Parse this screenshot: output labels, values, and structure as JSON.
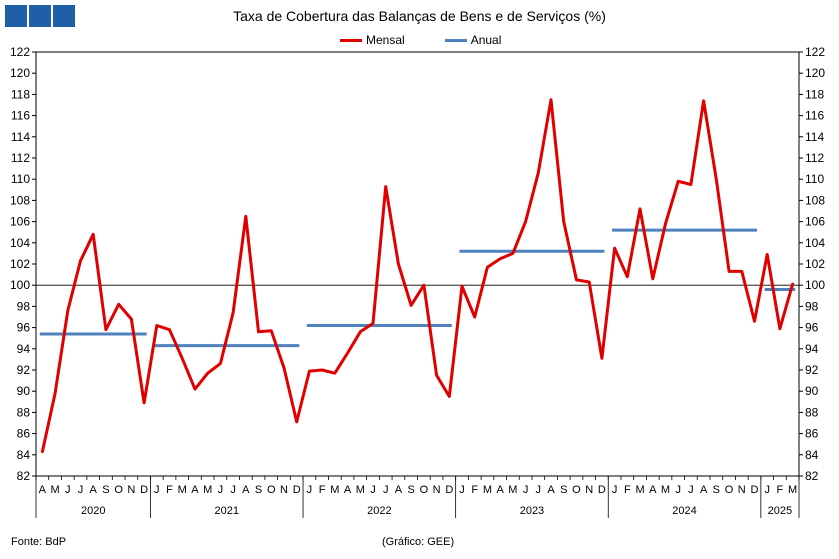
{
  "title": "Taxa de Cobertura das Balanças de Bens e de Serviços (%)",
  "legend": {
    "monthly": "Mensal",
    "annual": "Anual"
  },
  "colors": {
    "monthly": "#e00000",
    "annual": "#4f81bd",
    "logo": "#1f5fa8"
  },
  "footer": {
    "source": "Fonte: BdP",
    "credit": "(Gráfico: GEE)"
  },
  "chart_data": {
    "type": "line",
    "ylim": [
      82,
      122
    ],
    "yticks": [
      82,
      84,
      86,
      88,
      90,
      92,
      94,
      96,
      98,
      100,
      102,
      104,
      106,
      108,
      110,
      112,
      114,
      116,
      118,
      120,
      122
    ],
    "reference_line": 100,
    "month_labels": [
      "A",
      "M",
      "J",
      "J",
      "A",
      "S",
      "O",
      "N",
      "D",
      "J",
      "F",
      "M",
      "A",
      "M",
      "J",
      "J",
      "A",
      "S",
      "O",
      "N",
      "D",
      "J",
      "F",
      "M",
      "A",
      "M",
      "J",
      "J",
      "A",
      "S",
      "O",
      "N",
      "D",
      "J",
      "F",
      "M",
      "A",
      "M",
      "J",
      "J",
      "A",
      "S",
      "O",
      "N",
      "D",
      "J",
      "F",
      "M",
      "A",
      "M",
      "J",
      "J",
      "A",
      "S",
      "O",
      "N",
      "D",
      "J",
      "F",
      "M"
    ],
    "years": [
      {
        "label": "2020",
        "start": 0,
        "end": 8
      },
      {
        "label": "2021",
        "start": 9,
        "end": 20
      },
      {
        "label": "2022",
        "start": 21,
        "end": 32
      },
      {
        "label": "2023",
        "start": 33,
        "end": 44
      },
      {
        "label": "2024",
        "start": 45,
        "end": 56
      },
      {
        "label": "2025",
        "start": 57,
        "end": 59
      }
    ],
    "series": [
      {
        "name": "Mensal",
        "values": [
          84.3,
          89.8,
          97.6,
          102.3,
          104.8,
          95.8,
          98.2,
          96.8,
          88.9,
          96.2,
          95.8,
          93.1,
          90.2,
          91.7,
          92.6,
          97.4,
          106.5,
          95.6,
          95.7,
          92.2,
          87.1,
          91.9,
          92.0,
          91.7,
          93.6,
          95.6,
          96.4,
          109.3,
          102.0,
          98.1,
          100.0,
          91.5,
          89.5,
          99.9,
          97.0,
          101.7,
          102.5,
          103.0,
          106.0,
          110.6,
          117.5,
          106.0,
          100.5,
          100.3,
          93.1,
          103.5,
          100.8,
          107.2,
          100.6,
          105.8,
          109.8,
          109.5,
          117.4,
          110.0,
          101.3,
          101.3,
          96.6,
          102.9,
          95.9,
          100.1
        ]
      },
      {
        "name": "Anual",
        "segments": [
          {
            "start": 0,
            "end": 8,
            "value": 95.4
          },
          {
            "start": 9,
            "end": 20,
            "value": 94.3
          },
          {
            "start": 21,
            "end": 32,
            "value": 96.2
          },
          {
            "start": 33,
            "end": 44,
            "value": 103.2
          },
          {
            "start": 45,
            "end": 56,
            "value": 105.2
          },
          {
            "start": 57,
            "end": 59,
            "value": 99.6
          }
        ]
      }
    ]
  }
}
